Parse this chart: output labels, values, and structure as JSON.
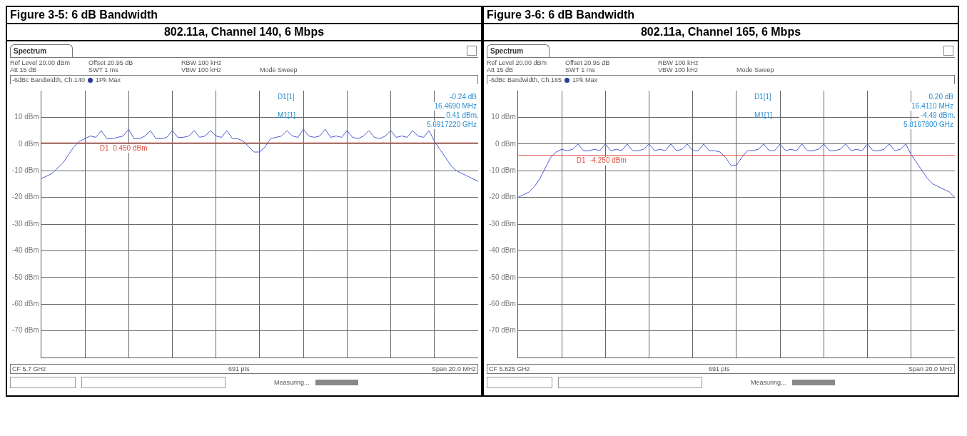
{
  "chart_data": [
    {
      "type": "line",
      "title": "Figure 3-5:  6 dB Bandwidth",
      "subtitle": "802.11a, Channel 140, 6 Mbps",
      "categories": [
        null,
        null,
        null,
        null,
        null,
        null,
        null,
        null,
        null,
        null,
        null,
        null,
        null,
        null,
        null,
        null,
        null,
        null,
        null,
        null,
        null,
        null,
        null,
        null,
        null,
        null,
        null,
        null,
        null,
        null,
        null,
        null,
        null,
        null,
        null,
        null,
        null,
        null,
        null,
        null,
        null,
        null,
        null,
        null,
        null,
        null,
        null,
        null,
        null,
        null,
        null,
        null,
        null,
        null,
        null,
        null,
        null,
        null,
        null,
        null,
        null,
        null,
        null,
        null,
        null,
        null,
        null,
        null,
        null,
        null,
        null,
        null,
        null,
        null,
        null,
        null,
        null,
        null,
        null,
        null,
        null
      ],
      "series": [
        {
          "color": "#4a5bd6",
          "values": [
            -13,
            -12,
            -11,
            -9,
            -7,
            -4,
            -1,
            1,
            2,
            3,
            2.5,
            5,
            2,
            2,
            2.5,
            3,
            5.5,
            2,
            2,
            3,
            5,
            2,
            2,
            2.5,
            5,
            2.5,
            2.5,
            3,
            5,
            2.5,
            3,
            5,
            3,
            2.5,
            5,
            2,
            2,
            1,
            -1,
            -3,
            -3,
            -1,
            2,
            2.5,
            3,
            5,
            3,
            2.5,
            5.5,
            3,
            2.5,
            3,
            5.5,
            2.5,
            3,
            2.5,
            5,
            2.5,
            2,
            3,
            5,
            2.5,
            2,
            3,
            5,
            2.5,
            3,
            2.5,
            5,
            3,
            2.5,
            5,
            1,
            -2,
            -5,
            -8,
            -10,
            -11,
            -12,
            -13,
            -14
          ]
        }
      ],
      "ylim": [
        -80,
        20
      ],
      "yticks": [
        {
          "value": 10,
          "label": "10 dBm"
        },
        {
          "value": 0,
          "label": "0 dBm"
        },
        {
          "value": -10,
          "label": "-10 dBm"
        },
        {
          "value": -20,
          "label": "-20 dBm"
        },
        {
          "value": -30,
          "label": "-30 dBm"
        },
        {
          "value": -40,
          "label": "-40 dBm"
        },
        {
          "value": -50,
          "label": "-50 dBm"
        },
        {
          "value": -60,
          "label": "-60 dBm"
        },
        {
          "value": -70,
          "label": "-70 dBm"
        }
      ],
      "grid": true,
      "marker": "none",
      "ref_lines": [
        {
          "axis": "y",
          "value": 0.45,
          "label": "D1  0.450 dBm",
          "color": "#e05040"
        }
      ],
      "annotations": [
        "Spectrum",
        "Ref Level 20.00 dBm",
        "Offset 20.95 dB",
        "RBW 100 kHz",
        "Att 15 dB",
        "SWT 1 ms",
        "VBW 100 kHz",
        "Mode Sweep",
        "-6dBc Bandwidth, Ch.140",
        "1Pk Max",
        "D1[1]",
        "-0.24 dB",
        "16.4690 MHz",
        "M1[1]",
        "0.41 dBm",
        "5.6917220 GHz",
        "CF 5.7 GHz",
        "691 pts",
        "Span 20.0 MHz",
        "Measuring..."
      ]
    },
    {
      "type": "line",
      "title": "Figure 3-6:  6 dB Bandwidth",
      "subtitle": "802.11a, Channel 165, 6 Mbps",
      "categories": [
        null,
        null,
        null,
        null,
        null,
        null,
        null,
        null,
        null,
        null,
        null,
        null,
        null,
        null,
        null,
        null,
        null,
        null,
        null,
        null,
        null,
        null,
        null,
        null,
        null,
        null,
        null,
        null,
        null,
        null,
        null,
        null,
        null,
        null,
        null,
        null,
        null,
        null,
        null,
        null,
        null,
        null,
        null,
        null,
        null,
        null,
        null,
        null,
        null,
        null,
        null,
        null,
        null,
        null,
        null,
        null,
        null,
        null,
        null,
        null,
        null,
        null,
        null,
        null,
        null,
        null,
        null,
        null,
        null,
        null,
        null,
        null,
        null,
        null,
        null,
        null,
        null,
        null,
        null,
        null,
        null
      ],
      "series": [
        {
          "color": "#4a5bd6",
          "values": [
            -20,
            -19,
            -18,
            -16,
            -13,
            -9,
            -5,
            -3,
            -2,
            -2.5,
            -2,
            0,
            -2.5,
            -2.5,
            -2,
            -2.5,
            0,
            -2.5,
            -2,
            -2.5,
            0,
            -2.5,
            -2.5,
            -2,
            0,
            -2.5,
            -2,
            -2.5,
            0,
            -2.5,
            -2,
            0,
            -2.5,
            -2.5,
            0,
            -2.5,
            -2.5,
            -3,
            -5,
            -8,
            -8,
            -5,
            -2.5,
            -2.5,
            -2,
            0,
            -2.5,
            -2.5,
            0,
            -2.5,
            -2,
            -2.5,
            0,
            -2.5,
            -2.5,
            -2,
            0,
            -2.5,
            -2.5,
            -2,
            0,
            -2.5,
            -2,
            -2.5,
            0,
            -2.5,
            -2.5,
            -2,
            0,
            -2.5,
            -2,
            0,
            -4,
            -7,
            -10,
            -13,
            -15,
            -16,
            -17,
            -18,
            -20
          ]
        }
      ],
      "ylim": [
        -80,
        20
      ],
      "yticks": [
        {
          "value": 10,
          "label": "10 dBm"
        },
        {
          "value": 0,
          "label": "0 dBm"
        },
        {
          "value": -10,
          "label": "-10 dBm"
        },
        {
          "value": -20,
          "label": "-20 dBm"
        },
        {
          "value": -30,
          "label": "-30 dBm"
        },
        {
          "value": -40,
          "label": "-40 dBm"
        },
        {
          "value": -50,
          "label": "-50 dBm"
        },
        {
          "value": -60,
          "label": "-60 dBm"
        },
        {
          "value": -70,
          "label": "-70 dBm"
        }
      ],
      "grid": true,
      "marker": "none",
      "ref_lines": [
        {
          "axis": "y",
          "value": -4.25,
          "label": "D1  -4.250 dBm",
          "color": "#e05040"
        }
      ],
      "annotations": [
        "Spectrum",
        "Ref Level 20.00 dBm",
        "Offset 20.95 dB",
        "RBW 100 kHz",
        "Att 15 dB",
        "SWT 1 ms",
        "VBW 100 kHz",
        "Mode Sweep",
        "-6dBc Bandwidth, Ch.165",
        "1Pk Max",
        "D1[1]",
        "0.20 dB",
        "16.4110 MHz",
        "M1[1]",
        "-4.49 dBm",
        "5.8167800 GHz",
        "CF 5.825 GHz",
        "691 pts",
        "Span 20.0 MHz",
        "Measuring..."
      ]
    }
  ]
}
